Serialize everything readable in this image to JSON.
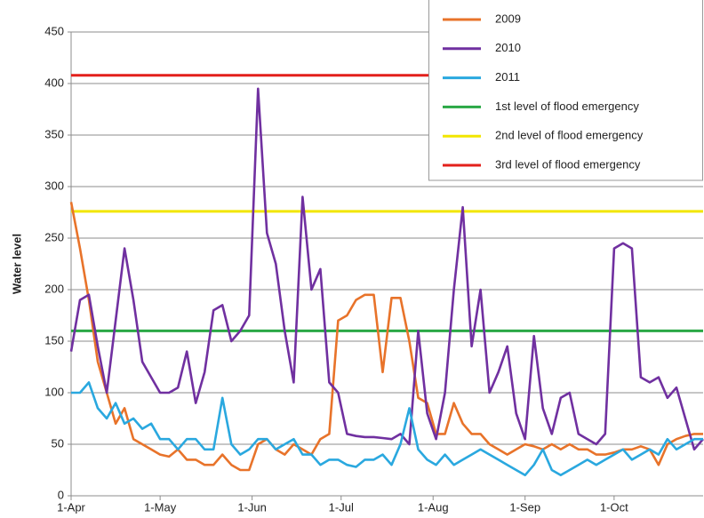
{
  "chart_data": {
    "type": "line",
    "y_label": "Water level",
    "x": [
      0,
      3,
      6,
      9,
      12,
      15,
      18,
      21,
      24,
      27,
      30,
      33,
      36,
      39,
      42,
      45,
      48,
      51,
      54,
      57,
      60,
      63,
      66,
      69,
      72,
      75,
      78,
      81,
      84,
      87,
      90,
      93,
      96,
      99,
      102,
      105,
      108,
      111,
      114,
      117,
      120,
      123,
      126,
      129,
      132,
      135,
      138,
      141,
      144,
      147,
      150,
      153,
      156,
      159,
      162,
      165,
      168,
      171,
      174,
      177,
      180,
      183,
      186,
      189,
      192,
      195,
      198,
      201,
      204,
      207,
      210,
      213
    ],
    "xlim": [
      0,
      213
    ],
    "xticks": [
      {
        "value": 0,
        "label": "1-Apr"
      },
      {
        "value": 30,
        "label": "1-May"
      },
      {
        "value": 61,
        "label": "1-Jun"
      },
      {
        "value": 91,
        "label": "1-Jul"
      },
      {
        "value": 122,
        "label": "1-Aug"
      },
      {
        "value": 153,
        "label": "1-Sep"
      },
      {
        "value": 183,
        "label": "1-Oct"
      }
    ],
    "ylim": [
      0,
      450
    ],
    "yticks": [
      0,
      50,
      100,
      150,
      200,
      250,
      300,
      350,
      400,
      450
    ],
    "grid": true,
    "series": [
      {
        "name": "2009",
        "color": "#e8732a",
        "values": [
          285,
          240,
          190,
          130,
          100,
          70,
          85,
          55,
          50,
          45,
          40,
          38,
          45,
          35,
          35,
          30,
          30,
          40,
          30,
          25,
          25,
          50,
          55,
          45,
          40,
          50,
          45,
          40,
          55,
          60,
          170,
          175,
          190,
          195,
          195,
          120,
          192,
          192,
          150,
          95,
          90,
          60,
          60,
          90,
          70,
          60,
          60,
          50,
          45,
          40,
          45,
          50,
          48,
          45,
          50,
          45,
          50,
          45,
          45,
          40,
          40,
          42,
          45,
          45,
          48,
          45,
          30,
          50,
          55,
          58,
          60,
          60
        ]
      },
      {
        "name": "2010",
        "color": "#7030a0",
        "values": [
          140,
          190,
          195,
          145,
          100,
          170,
          240,
          190,
          130,
          115,
          100,
          100,
          105,
          140,
          90,
          120,
          180,
          185,
          150,
          160,
          175,
          395,
          255,
          225,
          160,
          110,
          290,
          200,
          220,
          110,
          100,
          60,
          58,
          57,
          57,
          56,
          55,
          60,
          50,
          160,
          80,
          55,
          100,
          200,
          280,
          145,
          200,
          100,
          120,
          145,
          80,
          55,
          155,
          85,
          60,
          95,
          100,
          60,
          55,
          50,
          60,
          240,
          245,
          240,
          115,
          110,
          115,
          95,
          105,
          75,
          45,
          55
        ]
      },
      {
        "name": "2011",
        "color": "#2aa8df",
        "values": [
          100,
          100,
          110,
          85,
          75,
          90,
          70,
          75,
          65,
          70,
          55,
          55,
          45,
          55,
          55,
          45,
          45,
          95,
          50,
          40,
          45,
          55,
          55,
          45,
          50,
          55,
          40,
          40,
          30,
          35,
          35,
          30,
          28,
          35,
          35,
          40,
          30,
          50,
          85,
          45,
          35,
          30,
          40,
          30,
          35,
          40,
          45,
          40,
          35,
          30,
          25,
          20,
          30,
          45,
          25,
          20,
          25,
          30,
          35,
          30,
          35,
          40,
          45,
          35,
          40,
          45,
          40,
          55,
          45,
          50,
          55,
          55
        ]
      }
    ],
    "reference_lines": [
      {
        "name": "1st level of flood emergency",
        "color": "#2aa845",
        "value": 160
      },
      {
        "name": "2nd level of flood emergency",
        "color": "#f2e600",
        "value": 276
      },
      {
        "name": "3rd level of flood emergency",
        "color": "#e3201b",
        "value": 408
      }
    ]
  }
}
